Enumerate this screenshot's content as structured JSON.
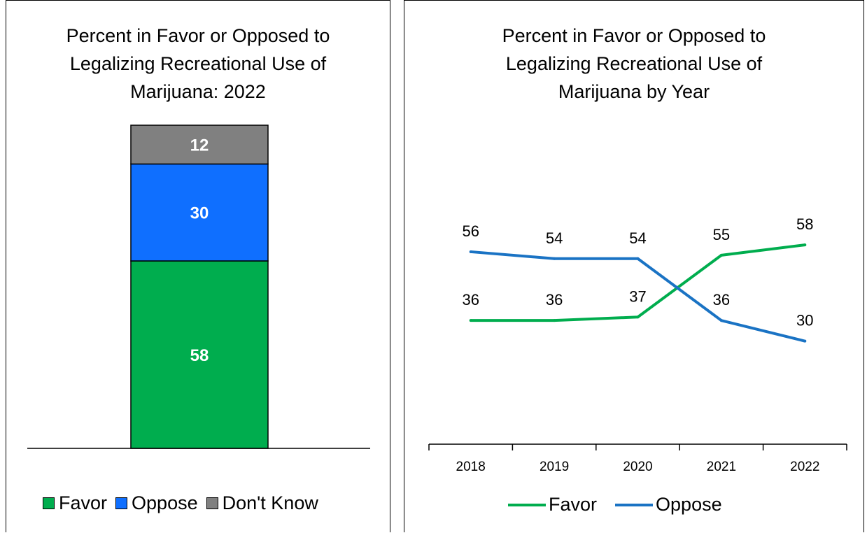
{
  "chart_data": [
    {
      "type": "bar",
      "stacked": true,
      "title_lines": [
        "Percent in Favor or Opposed to",
        "Legalizing Recreational Use of",
        "Marijuana: 2022"
      ],
      "categories": [
        "2022"
      ],
      "series": [
        {
          "name": "Favor",
          "values": [
            58
          ],
          "color": "#00ad4e"
        },
        {
          "name": "Oppose",
          "values": [
            30
          ],
          "color": "#0f6fff"
        },
        {
          "name": "Don't Know",
          "values": [
            12
          ],
          "color": "#808080"
        }
      ],
      "ylim": [
        0,
        100
      ],
      "legend_position": "bottom"
    },
    {
      "type": "line",
      "title_lines": [
        "Percent in Favor or Opposed to",
        "Legalizing Recreational Use of",
        "Marijuana by Year"
      ],
      "x": [
        "2018",
        "2019",
        "2020",
        "2021",
        "2022"
      ],
      "series": [
        {
          "name": "Favor",
          "values": [
            36,
            36,
            37,
            55,
            58
          ],
          "color": "#00ad4e"
        },
        {
          "name": "Oppose",
          "values": [
            56,
            54,
            54,
            36,
            30
          ],
          "color": "#1a73c4"
        }
      ],
      "ylim": [
        0,
        68
      ],
      "legend_position": "bottom"
    }
  ]
}
